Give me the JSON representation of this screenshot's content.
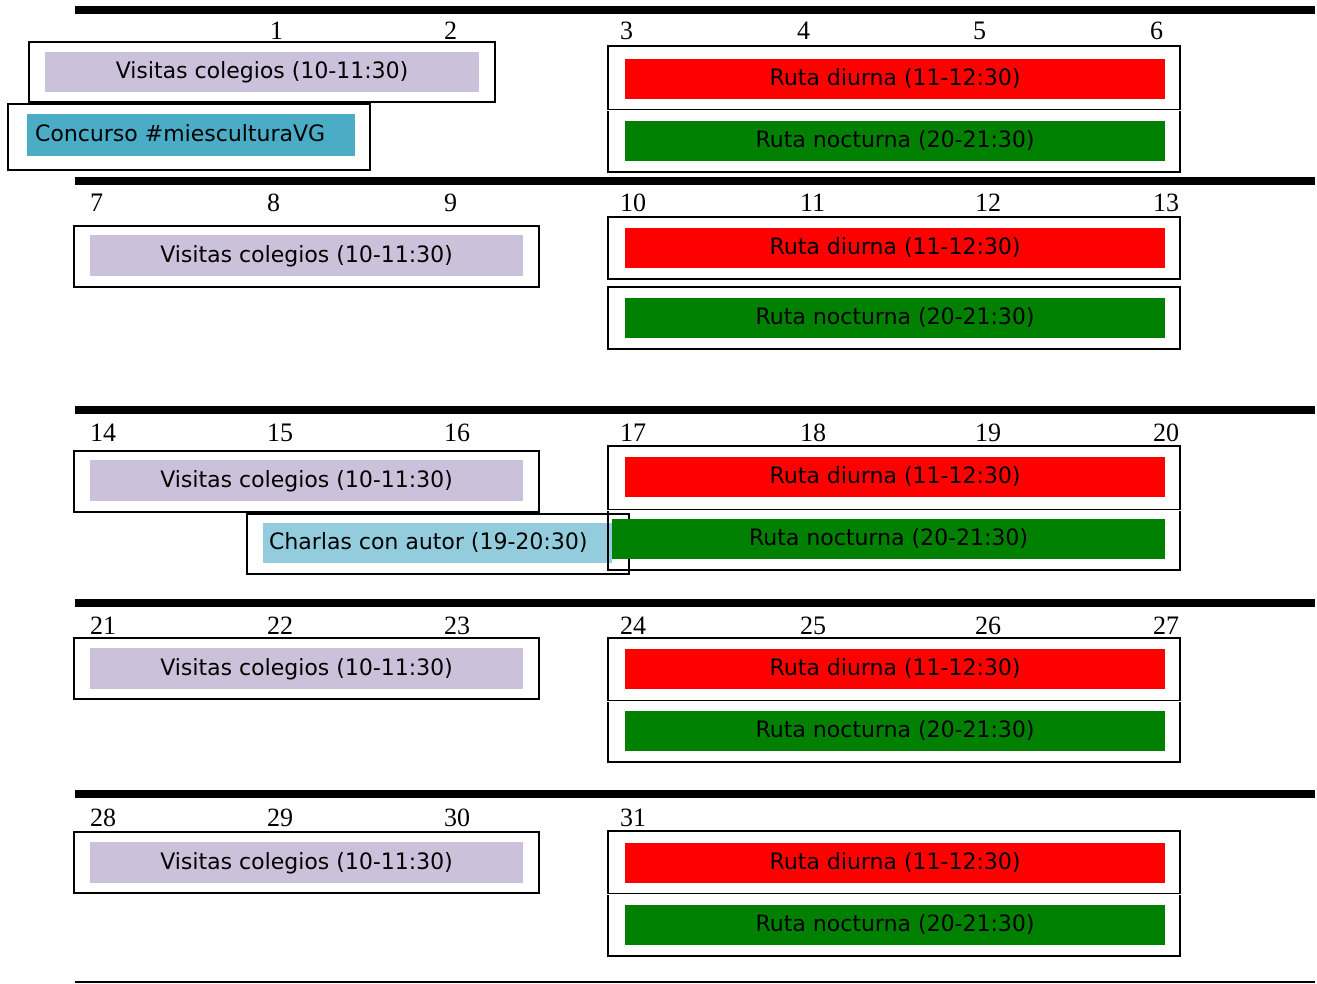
{
  "weeks": [
    {
      "days": [
        "1",
        "2",
        "3",
        "4",
        "5",
        "6"
      ],
      "events": {
        "visitas": "Visitas colegios (10-11:30)",
        "concurso": "Concurso #miesculturaVG",
        "diurna": "Ruta diurna (11-12:30)",
        "nocturna": "Ruta nocturna (20-21:30)"
      }
    },
    {
      "days": [
        "7",
        "8",
        "9",
        "10",
        "11",
        "12",
        "13"
      ],
      "events": {
        "visitas": "Visitas colegios (10-11:30)",
        "diurna": "Ruta diurna (11-12:30)",
        "nocturna": "Ruta nocturna (20-21:30)"
      }
    },
    {
      "days": [
        "14",
        "15",
        "16",
        "17",
        "18",
        "19",
        "20"
      ],
      "events": {
        "visitas": "Visitas colegios (10-11:30)",
        "charlas": "Charlas con autor (19-20:30)",
        "diurna": "Ruta diurna (11-12:30)",
        "nocturna": "Ruta nocturna (20-21:30)"
      }
    },
    {
      "days": [
        "21",
        "22",
        "23",
        "24",
        "25",
        "26",
        "27"
      ],
      "events": {
        "visitas": "Visitas colegios (10-11:30)",
        "diurna": "Ruta diurna (11-12:30)",
        "nocturna": "Ruta nocturna (20-21:30)"
      }
    },
    {
      "days": [
        "28",
        "29",
        "30",
        "31"
      ],
      "events": {
        "visitas": "Visitas colegios (10-11:30)",
        "diurna": "Ruta diurna (11-12:30)",
        "nocturna": "Ruta nocturna (20-21:30)"
      }
    }
  ],
  "colors": {
    "visitas": "#ccc1da",
    "diurna": "#ff0000",
    "nocturna": "#008000",
    "concurso": "#4bacc6",
    "charlas": "#93cddd"
  }
}
